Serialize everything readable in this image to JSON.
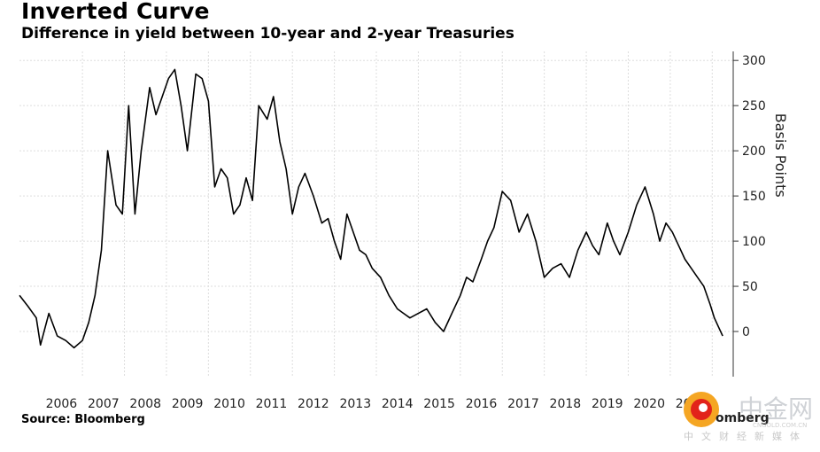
{
  "header": {
    "title": "Inverted Curve",
    "subtitle": "Difference in yield between 10-year and 2-year Treasuries"
  },
  "footer": {
    "source": "Source: Bloomberg"
  },
  "watermark": {
    "chinese_logo": "中金网",
    "chinese_sub": "中文财经新媒体",
    "brand_fragment": "omberg",
    "url_fragment": "CNGOLD.COM.CN",
    "logo_colors": [
      "#f5a623",
      "#e2231a"
    ]
  },
  "chart_data": {
    "type": "line",
    "title": "Inverted Curve",
    "subtitle": "Difference in yield between 10-year and 2-year Treasuries",
    "ylabel": "Basis Points",
    "xlabel": "",
    "y_axis_side": "right",
    "ylim": [
      -50,
      310
    ],
    "yticks": [
      0,
      50,
      100,
      150,
      200,
      250,
      300
    ],
    "x_tick_labels": [
      "2006",
      "2007",
      "2008",
      "2009",
      "2010",
      "2011",
      "2012",
      "2013",
      "2014",
      "2015",
      "2016",
      "2017",
      "2018",
      "2019",
      "2020",
      "2021"
    ],
    "xlim": [
      2005.5,
      2022.5
    ],
    "grid": true,
    "line_color": "#000000",
    "series": [
      {
        "x": [
          2005.5,
          2005.7,
          2005.9,
          2006.0,
          2006.2,
          2006.4,
          2006.6,
          2006.8,
          2007.0,
          2007.15,
          2007.3,
          2007.45,
          2007.6,
          2007.8,
          2007.95,
          2008.1,
          2008.25,
          2008.4,
          2008.6,
          2008.75,
          2008.9,
          2009.05,
          2009.2,
          2009.35,
          2009.5,
          2009.7,
          2009.85,
          2010.0,
          2010.15,
          2010.3,
          2010.45,
          2010.6,
          2010.75,
          2010.9,
          2011.05,
          2011.2,
          2011.4,
          2011.55,
          2011.7,
          2011.85,
          2012.0,
          2012.15,
          2012.3,
          2012.5,
          2012.7,
          2012.85,
          2013.0,
          2013.15,
          2013.3,
          2013.45,
          2013.6,
          2013.75,
          2013.9,
          2014.1,
          2014.3,
          2014.5,
          2014.65,
          2014.8,
          2015.0,
          2015.2,
          2015.4,
          2015.6,
          2015.8,
          2016.0,
          2016.15,
          2016.3,
          2016.5,
          2016.65,
          2016.8,
          2017.0,
          2017.2,
          2017.4,
          2017.6,
          2017.8,
          2018.0,
          2018.2,
          2018.4,
          2018.6,
          2018.8,
          2019.0,
          2019.15,
          2019.3,
          2019.5,
          2019.65,
          2019.8,
          2020.0,
          2020.2,
          2020.4,
          2020.6,
          2020.75,
          2020.9,
          2021.05,
          2021.2,
          2021.35,
          2021.5,
          2021.65,
          2021.8,
          2021.95,
          2022.05,
          2022.15,
          2022.25
        ],
        "values": [
          40,
          28,
          15,
          -15,
          20,
          -5,
          -10,
          -18,
          -10,
          10,
          40,
          90,
          200,
          140,
          130,
          250,
          130,
          200,
          270,
          240,
          260,
          280,
          290,
          250,
          200,
          285,
          280,
          255,
          160,
          180,
          170,
          130,
          140,
          170,
          145,
          250,
          235,
          260,
          210,
          180,
          130,
          160,
          175,
          150,
          120,
          125,
          100,
          80,
          130,
          110,
          90,
          85,
          70,
          60,
          40,
          25,
          20,
          15,
          20,
          25,
          10,
          0,
          20,
          40,
          60,
          55,
          80,
          100,
          115,
          155,
          145,
          110,
          130,
          100,
          60,
          70,
          75,
          60,
          90,
          110,
          95,
          85,
          120,
          100,
          85,
          110,
          140,
          160,
          130,
          100,
          120,
          110,
          95,
          80,
          70,
          60,
          50,
          30,
          15,
          5,
          -5
        ]
      }
    ]
  }
}
